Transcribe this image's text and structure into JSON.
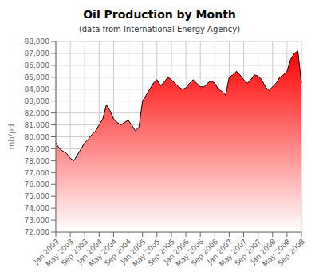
{
  "chart_data": {
    "type": "area",
    "title": "Oil Production by Month",
    "subtitle": "(data from International Energy Agency)",
    "ylabel": "mb/pd",
    "categories": [
      "Jan 2003",
      null,
      null,
      null,
      "May 2003",
      null,
      null,
      null,
      "Sep 2003",
      null,
      null,
      null,
      "Jan 2004",
      null,
      null,
      null,
      "May 2004",
      null,
      null,
      null,
      "Sep 2004",
      null,
      null,
      null,
      "Jan 2005",
      null,
      null,
      null,
      "May 2005",
      null,
      null,
      null,
      "Sep 2005",
      null,
      null,
      null,
      "Jan 2006",
      null,
      null,
      null,
      "May 2006",
      null,
      null,
      null,
      "Sep 2006",
      null,
      null,
      null,
      "Jan 2007",
      null,
      null,
      null,
      "May 2007",
      null,
      null,
      null,
      "Sep 2007",
      null,
      null,
      null,
      "Jan 2008",
      null,
      null,
      null,
      "May 2008",
      null,
      null,
      null,
      "Sep 2008"
    ],
    "values": [
      79500,
      79000,
      78800,
      78600,
      78200,
      78000,
      78500,
      79000,
      79500,
      79800,
      80200,
      80500,
      81000,
      81500,
      82700,
      82200,
      81500,
      81200,
      81000,
      81200,
      81400,
      81000,
      80500,
      80800,
      83000,
      83500,
      84000,
      84500,
      84800,
      84300,
      84600,
      85000,
      84800,
      84500,
      84200,
      84000,
      84100,
      84500,
      84800,
      84500,
      84200,
      84200,
      84500,
      84700,
      84500,
      84000,
      83800,
      83500,
      85000,
      85200,
      85500,
      85200,
      84800,
      84500,
      84800,
      85200,
      85100,
      84800,
      84200,
      83900,
      84200,
      84500,
      85000,
      85200,
      85500,
      86500,
      87000,
      87200,
      84500
    ],
    "color": "#000000",
    "ylim": [
      72000,
      88000
    ],
    "yticks": [
      {
        "value": 72000,
        "label": "72,000"
      },
      {
        "value": 73000,
        "label": "73,000"
      },
      {
        "value": 74000,
        "label": "74,000"
      },
      {
        "value": 75000,
        "label": "75,000"
      },
      {
        "value": 76000,
        "label": "76,000"
      },
      {
        "value": 77000,
        "label": "77,000"
      },
      {
        "value": 78000,
        "label": "78,000"
      },
      {
        "value": 79000,
        "label": "79,000"
      },
      {
        "value": 80000,
        "label": "80,000"
      },
      {
        "value": 81000,
        "label": "81,000"
      },
      {
        "value": 82000,
        "label": "82,000"
      },
      {
        "value": 83000,
        "label": "83,000"
      },
      {
        "value": 84000,
        "label": "84,000"
      },
      {
        "value": 85000,
        "label": "85,000"
      },
      {
        "value": 86000,
        "label": "86,000"
      },
      {
        "value": 87000,
        "label": "87,000"
      },
      {
        "value": 88000,
        "label": "88,000"
      }
    ],
    "grid": true
  }
}
